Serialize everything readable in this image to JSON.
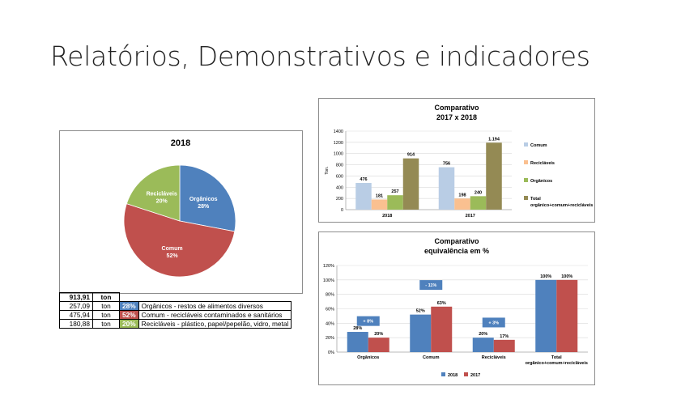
{
  "slide": {
    "title": "Relatórios, Demonstrativos e indicadores"
  },
  "summary_table": {
    "total": {
      "value": "913,91",
      "unit": "ton"
    },
    "rows": [
      {
        "value": "257,09",
        "unit": "ton",
        "pct": "28%",
        "color": "#4f81bd",
        "desc": "Orgânicos - restos de alimentos diversos"
      },
      {
        "value": "475,94",
        "unit": "ton",
        "pct": "52%",
        "color": "#c0504d",
        "desc": "Comum - recicláveis contaminados e sanitários"
      },
      {
        "value": "180,88",
        "unit": "ton",
        "pct": "20%",
        "color": "#9bbb59",
        "desc": "Recicláveis - plástico, papel/pepelão, vidro, metal"
      }
    ]
  },
  "chart_data": [
    {
      "type": "pie",
      "title": "2018",
      "slices": [
        {
          "label": "Orgânicos",
          "value": 28,
          "display": "28%",
          "color": "#4f81bd"
        },
        {
          "label": "Comum",
          "value": 52,
          "display": "52%",
          "color": "#c0504d"
        },
        {
          "label": "Recicláveis",
          "value": 20,
          "display": "20%",
          "color": "#9bbb59"
        }
      ]
    },
    {
      "type": "bar",
      "title": [
        "Comparativo",
        "2017 x 2018"
      ],
      "ylabel": "Ton.",
      "ylim": [
        0,
        1400
      ],
      "yticks": [
        "0",
        "200",
        "400",
        "600",
        "800",
        "1000",
        "1200",
        "1400"
      ],
      "categories": [
        "2018",
        "2017"
      ],
      "series": [
        {
          "name": "Comum",
          "color": "#b9cde5",
          "values": [
            476,
            756
          ],
          "labels": [
            "476",
            "756"
          ]
        },
        {
          "name": "Recicláveis",
          "color": "#fac090",
          "values": [
            181,
            198
          ],
          "labels": [
            "181",
            "198"
          ]
        },
        {
          "name": "Orgânicos",
          "color": "#9bbb59",
          "values": [
            257,
            240
          ],
          "labels": [
            "257",
            "240"
          ]
        },
        {
          "name": "Total orgânico+comum+recicláveis",
          "legend_lines": [
            "Total",
            "orgânico+comum+recicláveis"
          ],
          "color": "#948a54",
          "values": [
            914,
            1194
          ],
          "labels": [
            "914",
            "1.194"
          ]
        }
      ],
      "legend": "right"
    },
    {
      "type": "bar",
      "title": [
        "Comparativo",
        "equivalência em %"
      ],
      "ylim": [
        0,
        120
      ],
      "yticks": [
        "0%",
        "20%",
        "40%",
        "60%",
        "80%",
        "100%",
        "120%"
      ],
      "categories": [
        "Orgânicos",
        "Comum",
        "Recicláveis",
        "Total orgânico+comum+recicláveis"
      ],
      "category_lines": [
        [
          "Orgânicos"
        ],
        [
          "Comum"
        ],
        [
          "Recicláveis"
        ],
        [
          "Total",
          "orgânico+comum+recicláveis"
        ]
      ],
      "series": [
        {
          "name": "2018",
          "color": "#4f81bd",
          "values": [
            28,
            52,
            20,
            100
          ],
          "labels": [
            "28%",
            "52%",
            "20%",
            "100%"
          ]
        },
        {
          "name": "2017",
          "color": "#c0504d",
          "values": [
            20,
            63,
            17,
            100
          ],
          "labels": [
            "20%",
            "63%",
            "17%",
            "100%"
          ]
        }
      ],
      "annotations": [
        {
          "text": "+ 8%",
          "category": 0,
          "level": 43
        },
        {
          "text": "- 11%",
          "category": 1,
          "level": 93
        },
        {
          "text": "+ 3%",
          "category": 2,
          "level": 41
        }
      ],
      "legend": "bottom"
    }
  ]
}
